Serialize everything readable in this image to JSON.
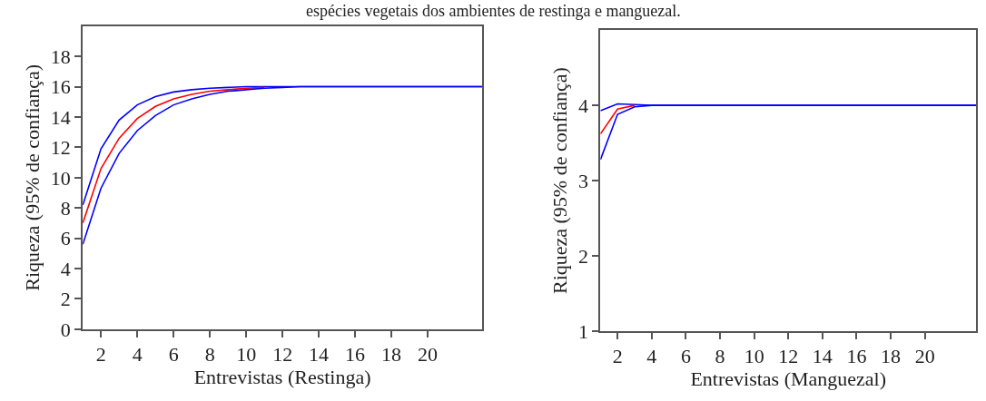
{
  "chart_data": [
    {
      "type": "line",
      "title": "espécies vegetais dos ambientes de restinga e manguezal.",
      "xlabel": "Entrevistas (Restinga)",
      "ylabel": "Riqueza (95% de confiança)",
      "xlim": [
        1,
        23
      ],
      "ylim": [
        0,
        20
      ],
      "xticks": [
        2,
        4,
        6,
        8,
        10,
        12,
        14,
        16,
        18,
        20
      ],
      "yticks": [
        0,
        2,
        4,
        6,
        8,
        10,
        12,
        14,
        16,
        18
      ],
      "series": [
        {
          "color": "#0000ff",
          "x": [
            1,
            2,
            3,
            4,
            5,
            6,
            7,
            8,
            9,
            10,
            11,
            12,
            13,
            23
          ],
          "values": [
            8.2,
            11.9,
            13.8,
            14.8,
            15.35,
            15.65,
            15.8,
            15.9,
            15.95,
            16,
            16,
            16,
            16,
            16
          ]
        },
        {
          "color": "#ff0000",
          "x": [
            1,
            2,
            3,
            4,
            5,
            6,
            7,
            8,
            9,
            10,
            11
          ],
          "values": [
            7,
            10.6,
            12.6,
            13.9,
            14.7,
            15.2,
            15.5,
            15.7,
            15.8,
            15.9,
            15.95
          ]
        },
        {
          "color": "#0000ff",
          "x": [
            1,
            2,
            3,
            4,
            5,
            6,
            7,
            8,
            9,
            10,
            11,
            12,
            13,
            23
          ],
          "values": [
            5.6,
            9.3,
            11.6,
            13.1,
            14.1,
            14.8,
            15.2,
            15.5,
            15.7,
            15.8,
            15.9,
            15.95,
            16,
            16
          ]
        }
      ]
    },
    {
      "type": "line",
      "xlabel": "Entrevistas (Manguezal)",
      "ylabel": "Riqueza (95% de confiança)",
      "xlim": [
        1,
        23
      ],
      "ylim": [
        1,
        5
      ],
      "xticks": [
        2,
        4,
        6,
        8,
        10,
        12,
        14,
        16,
        18,
        20
      ],
      "yticks": [
        1,
        2,
        3,
        4
      ],
      "series": [
        {
          "color": "#0000ff",
          "x": [
            1,
            2,
            3,
            4,
            23
          ],
          "values": [
            3.93,
            4.02,
            4.01,
            4,
            4
          ]
        },
        {
          "color": "#ff0000",
          "x": [
            1,
            2,
            3
          ],
          "values": [
            3.62,
            3.95,
            4
          ]
        },
        {
          "color": "#0000ff",
          "x": [
            1,
            2,
            3,
            4,
            23
          ],
          "values": [
            3.28,
            3.88,
            3.98,
            4,
            4
          ]
        }
      ]
    }
  ]
}
